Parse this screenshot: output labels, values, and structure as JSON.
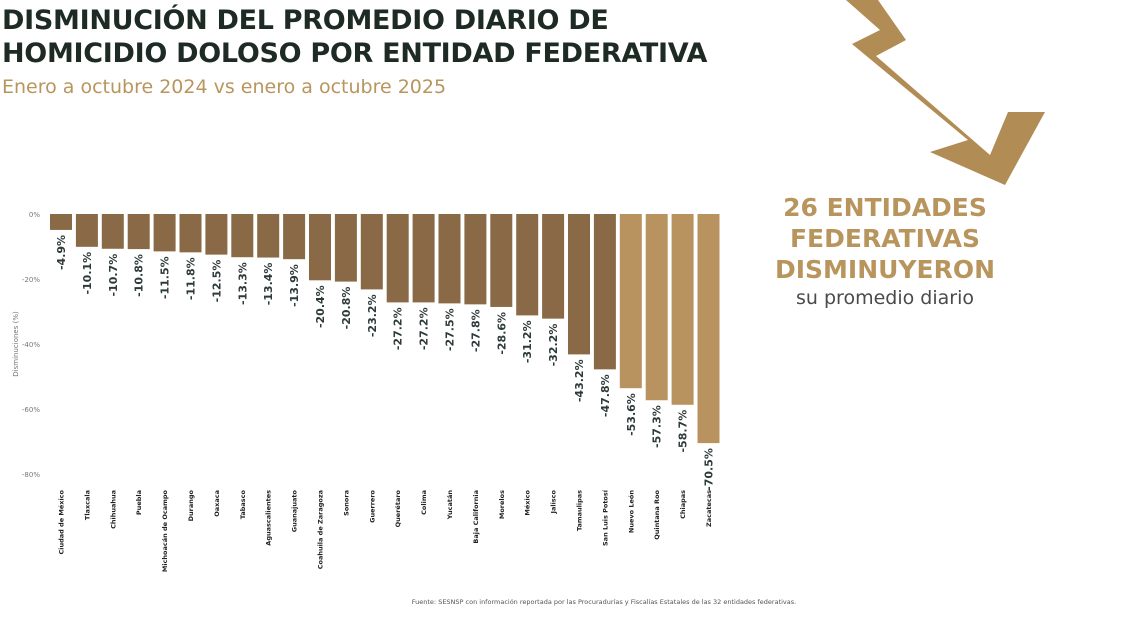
{
  "header": {
    "title_line1": "DISMINUCIÓN DEL PROMEDIO DIARIO DE",
    "title_line2": "HOMICIDIO DOLOSO POR ENTIDAD FEDERATIVA",
    "subtitle": "Enero a octubre 2024 vs enero a octubre 2025"
  },
  "callout": {
    "line1": "26 ENTIDADES",
    "line2": "FEDERATIVAS",
    "line3": "DISMINUYERON",
    "line4": "su promedio diario"
  },
  "footer": {
    "source": "Fuente: SESNSP con información reportada por las Procuradurías y Fiscalías Estatales de las 32 entidades federativas."
  },
  "colors": {
    "dark_bar": "#8a6a46",
    "light_bar": "#b9935f",
    "accent": "#b9955e",
    "title": "#1e2a24"
  },
  "chart_data": {
    "type": "bar",
    "title": "",
    "xlabel": "",
    "ylabel": "Disminuciones (%)",
    "ylim": [
      -80,
      0
    ],
    "yticks": [
      "0%",
      "-20%",
      "-40%",
      "-60%",
      "-80%"
    ],
    "ytick_values": [
      0,
      -20,
      -40,
      -60,
      -80
    ],
    "grid": false,
    "categories": [
      "Ciudad de México",
      "Tlaxcala",
      "Chihuahua",
      "Puebla",
      "Michoacán de Ocampo",
      "Durango",
      "Oaxaca",
      "Tabasco",
      "Aguascalientes",
      "Guanajuato",
      "Coahuila de Zaragoza",
      "Sonora",
      "Guerrero",
      "Querétaro",
      "Colima",
      "Yucatán",
      "Baja California",
      "Morelos",
      "México",
      "Jalisco",
      "Tamaulipas",
      "San Luis Potosí",
      "Nuevo León",
      "Quintana Roo",
      "Chiapas",
      "Zacatecas"
    ],
    "values": [
      -4.9,
      -10.1,
      -10.7,
      -10.8,
      -11.5,
      -11.8,
      -12.5,
      -13.3,
      -13.4,
      -13.9,
      -20.4,
      -20.8,
      -23.2,
      -27.2,
      -27.2,
      -27.5,
      -27.8,
      -28.6,
      -31.2,
      -32.2,
      -43.2,
      -47.8,
      -53.6,
      -57.3,
      -58.7,
      -70.5
    ],
    "labels": [
      "-4.9%",
      "-10.1%",
      "-10.7%",
      "-10.8%",
      "-11.5%",
      "-11.8%",
      "-12.5%",
      "-13.3%",
      "-13.4%",
      "-13.9%",
      "-20.4%",
      "-20.8%",
      "-23.2%",
      "-27.2%",
      "-27.2%",
      "-27.5%",
      "-27.8%",
      "-28.6%",
      "-31.2%",
      "-32.2%",
      "-43.2%",
      "-47.8%",
      "-53.6%",
      "-57.3%",
      "-58.7%",
      "-70.5%"
    ]
  }
}
